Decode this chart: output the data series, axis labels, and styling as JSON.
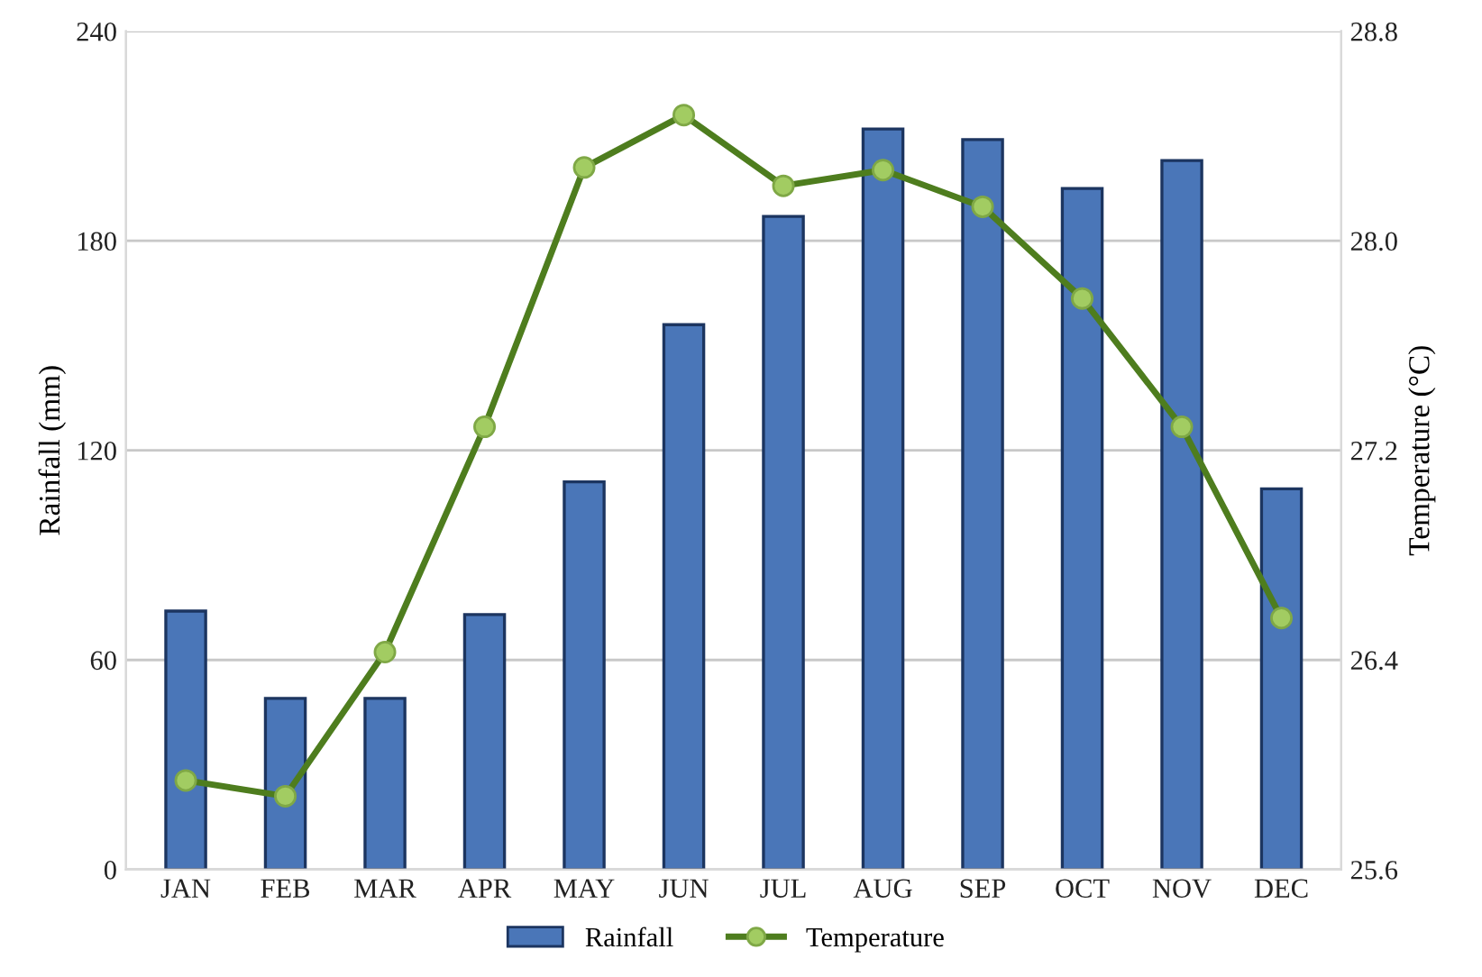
{
  "chart_data": {
    "type": "bar",
    "ylabel": "Rainfall (mm)",
    "y2label": "Temperature (°C)",
    "categories": [
      "JAN",
      "FEB",
      "MAR",
      "APR",
      "MAY",
      "JUN",
      "JUL",
      "AUG",
      "SEP",
      "OCT",
      "NOV",
      "DEC"
    ],
    "series": [
      {
        "name": "Rainfall",
        "color": "#4a76b8",
        "values": [
          74,
          49,
          49,
          73,
          111,
          156,
          187,
          212,
          209,
          195,
          203,
          109
        ]
      },
      {
        "name": "Temperature",
        "type": "line",
        "axis": "y2",
        "color": "#4e7d1e",
        "marker": "circle",
        "values": [
          25.94,
          25.88,
          26.43,
          27.29,
          28.28,
          28.48,
          28.21,
          28.27,
          28.13,
          27.78,
          27.29,
          26.56
        ]
      }
    ],
    "ylim": [
      0,
      240
    ],
    "yticks": [
      0,
      60,
      120,
      180,
      240
    ],
    "y2lim": [
      25.6,
      28.8
    ],
    "y2ticks": [
      {
        "value": 25.6,
        "label": "25.6"
      },
      {
        "value": 26.4,
        "label": "26.4"
      },
      {
        "value": 27.2,
        "label": "27.2"
      },
      {
        "value": 28.0,
        "label": "28.0"
      },
      {
        "value": 28.8,
        "label": "28.8"
      }
    ],
    "grid": "y",
    "legend": "bottom"
  }
}
